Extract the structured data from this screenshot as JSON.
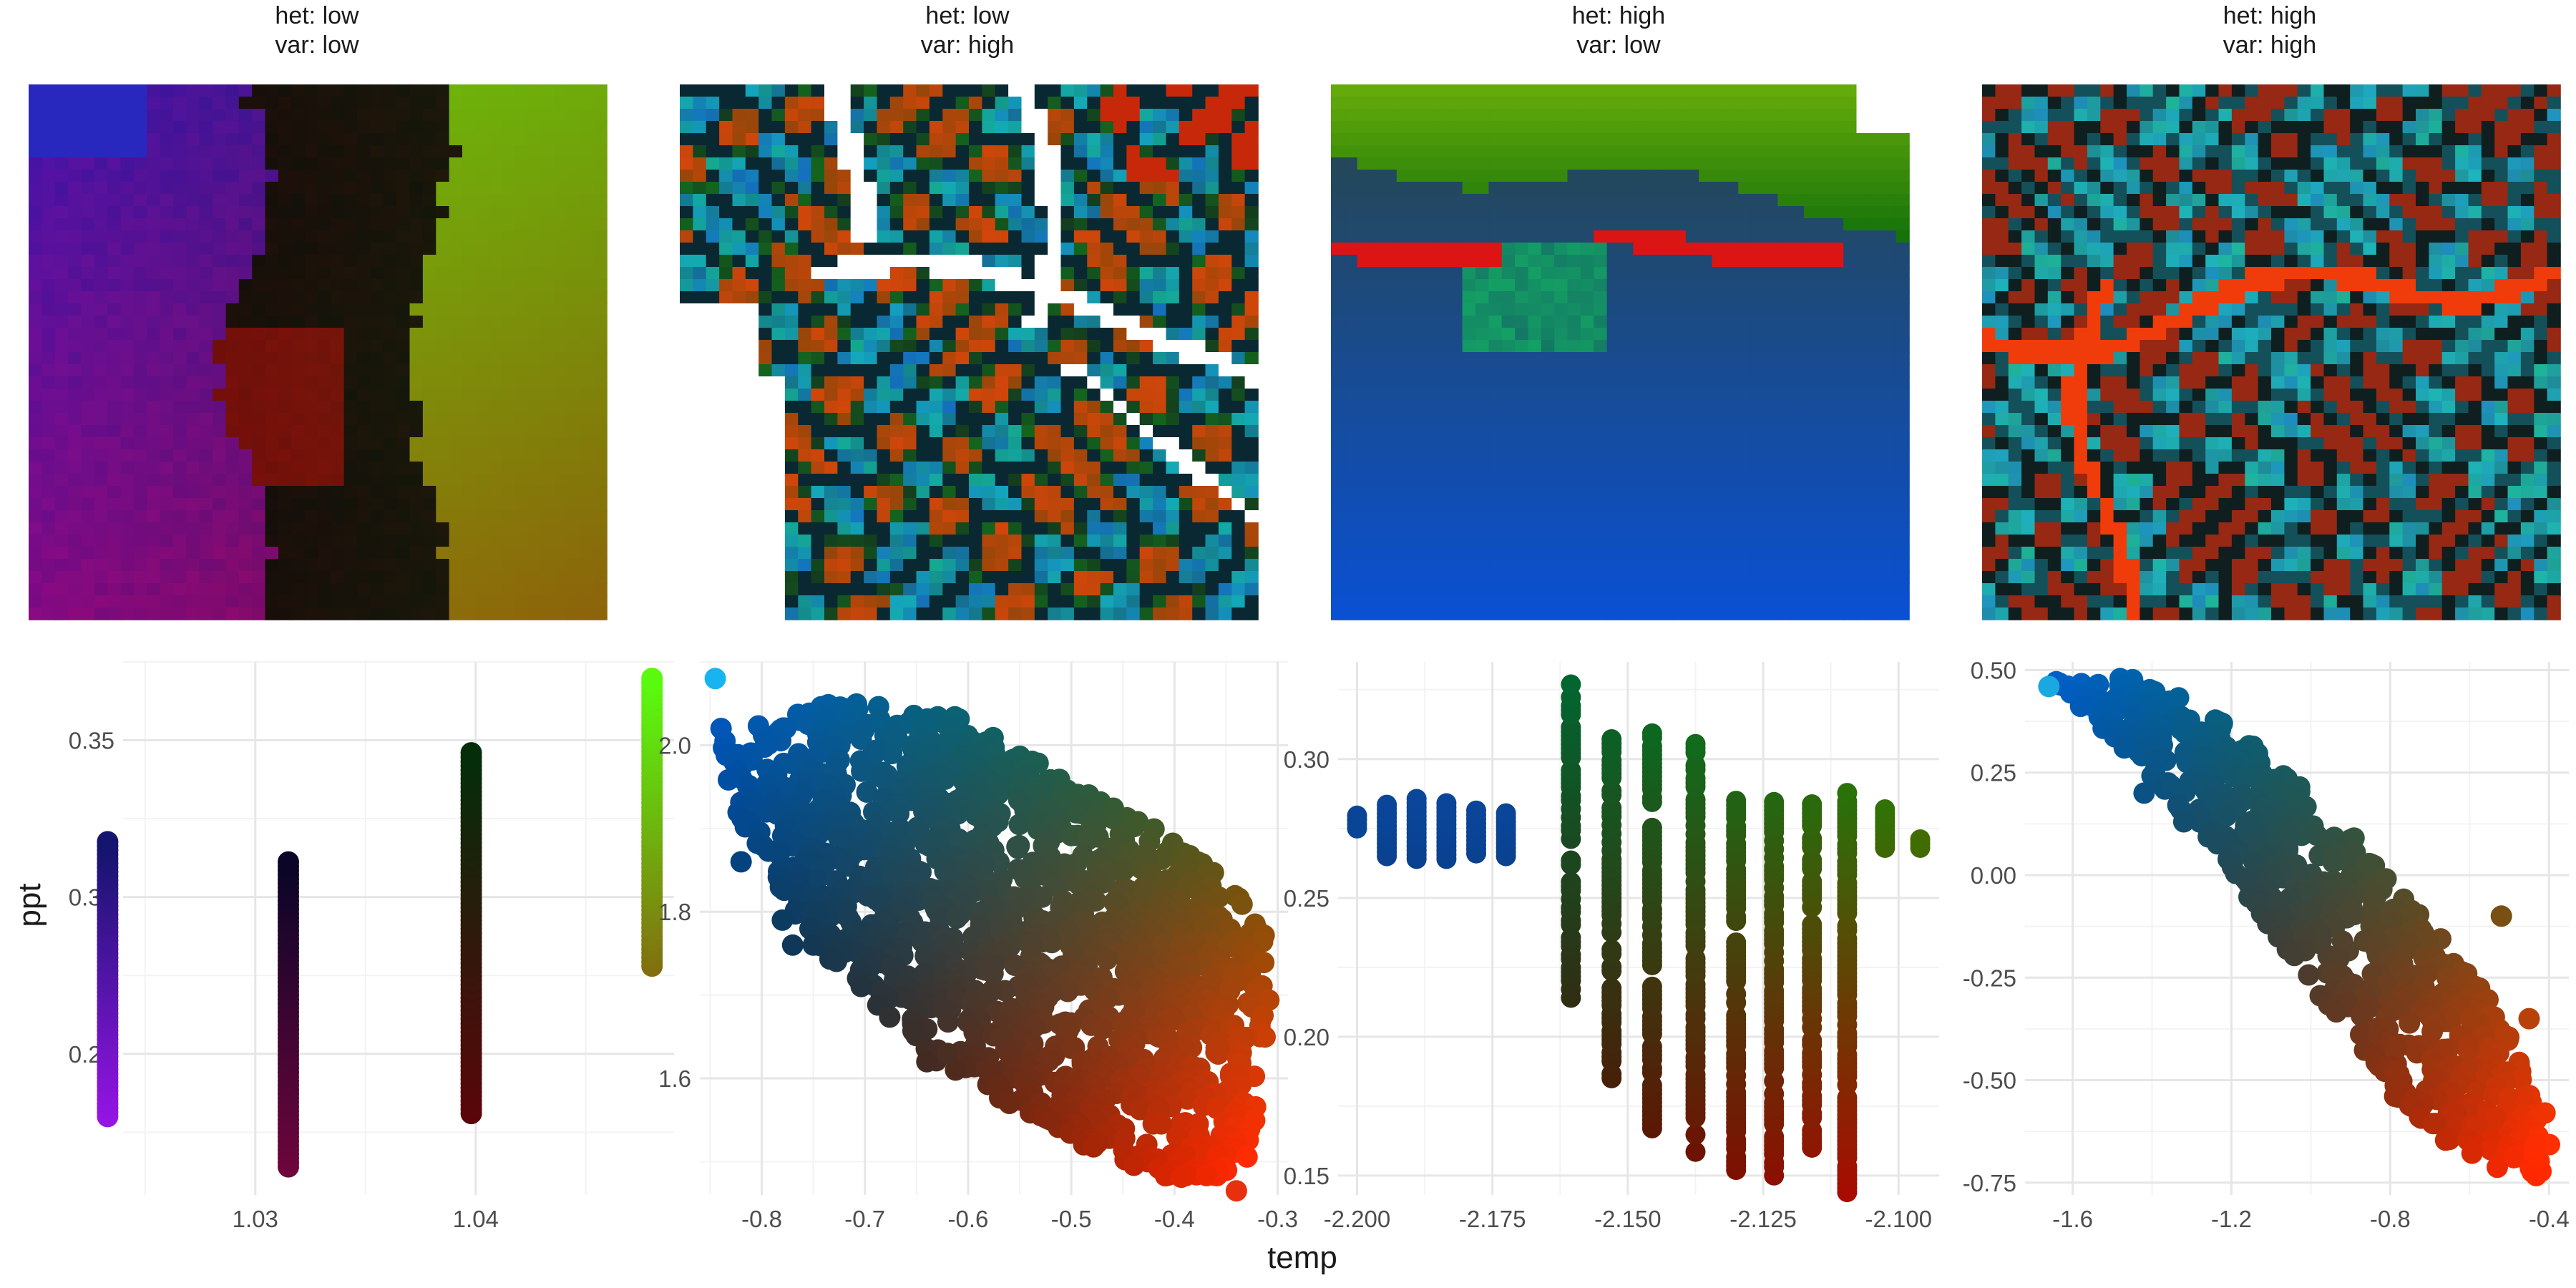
{
  "figure": {
    "xlabel": "temp",
    "ylabel": "ppt"
  },
  "chart_data": [
    {
      "type": "scatter",
      "title_lines": [
        "het: low",
        "var: low"
      ],
      "xlim": [
        1.024,
        1.049
      ],
      "ylim": [
        0.205,
        0.375
      ],
      "xticks": [
        1.03,
        1.04
      ],
      "xtick_labels": [
        "1.03",
        "1.04"
      ],
      "yticks": [
        0.25,
        0.3,
        0.35
      ],
      "ytick_labels": [
        "0.25",
        "0.30",
        "0.35"
      ],
      "columns": [
        {
          "x": 1.0233,
          "ymin": 0.23,
          "ymax": 0.318
        },
        {
          "x": 1.0315,
          "ymin": 0.214,
          "ymax": 0.312
        },
        {
          "x": 1.0398,
          "ymin": 0.231,
          "ymax": 0.346
        },
        {
          "x": 1.048,
          "ymin": 0.278,
          "ymax": 0.37
        }
      ],
      "map_style": "bands",
      "grid": true
    },
    {
      "type": "scatter",
      "title_lines": [
        "het: low",
        "var: high"
      ],
      "xlim": [
        -0.86,
        -0.29
      ],
      "ylim": [
        1.46,
        2.1
      ],
      "xticks": [
        -0.8,
        -0.7,
        -0.6,
        -0.5,
        -0.4,
        -0.3
      ],
      "xtick_labels": [
        "-0.8",
        "-0.7",
        "-0.6",
        "-0.5",
        "-0.4",
        "-0.3"
      ],
      "yticks": [
        1.6,
        1.8,
        2.0
      ],
      "ytick_labels": [
        "1.6",
        "1.8",
        "2.0"
      ],
      "cloud": [
        [
          -0.845,
          2.02
        ],
        [
          -0.8,
          2.03
        ],
        [
          -0.7,
          2.06
        ],
        [
          -0.62,
          2.04
        ],
        [
          -0.52,
          1.97
        ],
        [
          -0.42,
          1.9
        ],
        [
          -0.34,
          1.83
        ],
        [
          -0.305,
          1.76
        ],
        [
          -0.31,
          1.62
        ],
        [
          -0.33,
          1.5
        ],
        [
          -0.38,
          1.47
        ],
        [
          -0.46,
          1.5
        ],
        [
          -0.55,
          1.56
        ],
        [
          -0.63,
          1.62
        ],
        [
          -0.72,
          1.72
        ],
        [
          -0.79,
          1.83
        ],
        [
          -0.83,
          1.93
        ]
      ],
      "outliers": [
        [
          -0.845,
          2.08
        ],
        [
          -0.82,
          1.86
        ],
        [
          -0.78,
          1.79
        ],
        [
          -0.77,
          1.76
        ],
        [
          -0.75,
          1.76
        ],
        [
          -0.64,
          1.62
        ],
        [
          -0.62,
          1.63
        ],
        [
          -0.56,
          1.57
        ],
        [
          -0.52,
          1.55
        ],
        [
          -0.34,
          1.465
        ]
      ],
      "map_style": "maze_white",
      "grid": true
    },
    {
      "type": "scatter",
      "title_lines": [
        "het: high",
        "var: low"
      ],
      "xlim": [
        -2.2035,
        -2.0925
      ],
      "ylim": [
        0.143,
        0.335
      ],
      "xticks": [
        -2.2,
        -2.175,
        -2.15,
        -2.125,
        -2.1
      ],
      "xtick_labels": [
        "-2.200",
        "-2.175",
        "-2.150",
        "-2.125",
        "-2.100"
      ],
      "yticks": [
        0.15,
        0.2,
        0.25,
        0.3
      ],
      "ytick_labels": [
        "0.15",
        "0.20",
        "0.25",
        "0.30"
      ],
      "columns": [
        {
          "x": -2.2,
          "ymin": 0.275,
          "ymax": 0.281
        },
        {
          "x": -2.1945,
          "ymin": 0.265,
          "ymax": 0.285
        },
        {
          "x": -2.189,
          "ymin": 0.264,
          "ymax": 0.286
        },
        {
          "x": -2.1835,
          "ymin": 0.264,
          "ymax": 0.285
        },
        {
          "x": -2.178,
          "ymin": 0.266,
          "ymax": 0.282
        },
        {
          "x": -2.1725,
          "ymin": 0.265,
          "ymax": 0.281
        },
        {
          "x": -2.1605,
          "ymin": 0.214,
          "ymax": 0.327
        },
        {
          "x": -2.153,
          "ymin": 0.185,
          "ymax": 0.308
        },
        {
          "x": -2.1455,
          "ymin": 0.167,
          "ymax": 0.312
        },
        {
          "x": -2.1375,
          "ymin": 0.157,
          "ymax": 0.306
        },
        {
          "x": -2.13,
          "ymin": 0.152,
          "ymax": 0.285
        },
        {
          "x": -2.123,
          "ymin": 0.15,
          "ymax": 0.285
        },
        {
          "x": -2.116,
          "ymin": 0.16,
          "ymax": 0.285
        },
        {
          "x": -2.1095,
          "ymin": 0.144,
          "ymax": 0.289
        },
        {
          "x": -2.1025,
          "ymin": 0.268,
          "ymax": 0.283
        },
        {
          "x": -2.096,
          "ymin": 0.268,
          "ymax": 0.272
        }
      ],
      "map_style": "gradient_band",
      "grid": true
    },
    {
      "type": "scatter",
      "title_lines": [
        "het: high",
        "var: high"
      ],
      "xlim": [
        -1.72,
        -0.35
      ],
      "ylim": [
        -0.78,
        0.52
      ],
      "xticks": [
        -1.6,
        -1.2,
        -0.8,
        -0.4
      ],
      "xtick_labels": [
        "-1.6",
        "-1.2",
        "-0.8",
        "-0.4"
      ],
      "yticks": [
        -0.75,
        -0.5,
        -0.25,
        0.0,
        0.25,
        0.5
      ],
      "ytick_labels": [
        "-0.75",
        "-0.50",
        "-0.25",
        "0.00",
        "0.25",
        "0.50"
      ],
      "cloud": [
        [
          -1.65,
          0.47
        ],
        [
          -1.55,
          0.49
        ],
        [
          -1.45,
          0.48
        ],
        [
          -1.3,
          0.42
        ],
        [
          -1.15,
          0.33
        ],
        [
          -1.0,
          0.2
        ],
        [
          -0.85,
          0.05
        ],
        [
          -0.7,
          -0.12
        ],
        [
          -0.55,
          -0.3
        ],
        [
          -0.44,
          -0.5
        ],
        [
          -0.38,
          -0.66
        ],
        [
          -0.4,
          -0.74
        ],
        [
          -0.52,
          -0.72
        ],
        [
          -0.65,
          -0.66
        ],
        [
          -0.78,
          -0.55
        ],
        [
          -0.92,
          -0.38
        ],
        [
          -1.05,
          -0.2
        ],
        [
          -1.18,
          -0.02
        ],
        [
          -1.32,
          0.15
        ],
        [
          -1.48,
          0.32
        ],
        [
          -1.6,
          0.42
        ]
      ],
      "outliers": [
        [
          -1.66,
          0.46
        ],
        [
          -1.47,
          0.31
        ],
        [
          -1.42,
          0.2
        ],
        [
          -1.32,
          0.13
        ],
        [
          -0.52,
          -0.1
        ],
        [
          -0.45,
          -0.35
        ],
        [
          -0.41,
          -0.58
        ]
      ],
      "map_style": "maze_red",
      "grid": true
    }
  ]
}
